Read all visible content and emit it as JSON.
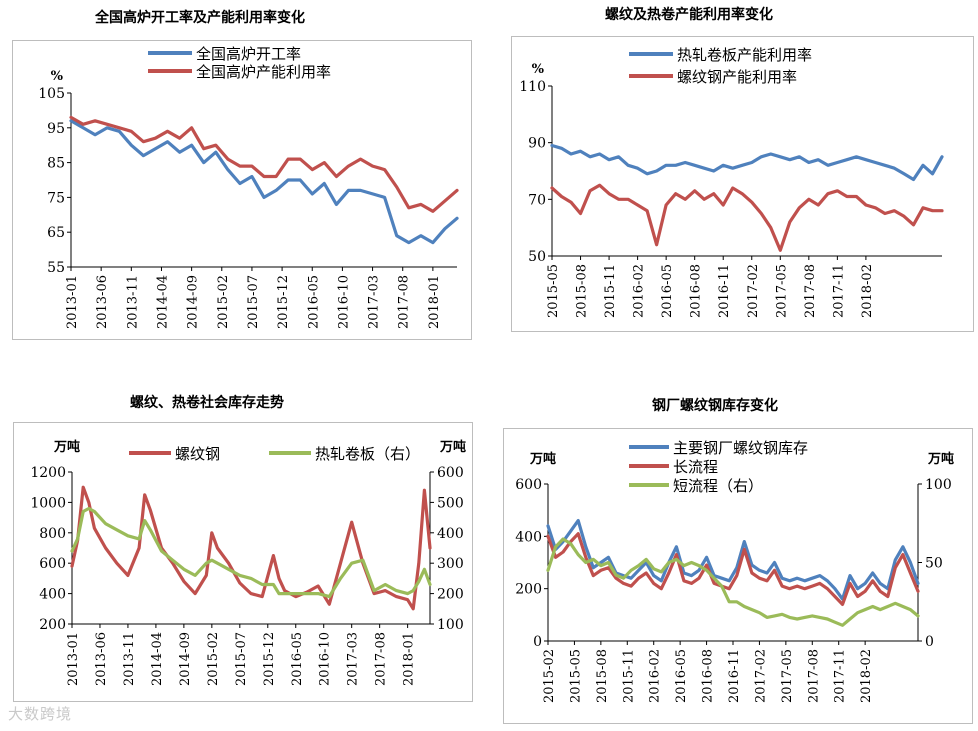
{
  "watermark": "大数跨境",
  "chart_data": [
    {
      "type": "line",
      "title": "全国高炉开工率及产能利用率变化",
      "ylabel": "%",
      "ylim": [
        55,
        105
      ],
      "yticks": [
        55,
        65,
        75,
        85,
        95,
        105
      ],
      "xticks": [
        "2013-01",
        "2013-06",
        "2013-11",
        "2014-04",
        "2014-09",
        "2015-02",
        "2015-07",
        "2015-12",
        "2016-05",
        "2016-10",
        "2017-03",
        "2017-08",
        "2018-01"
      ],
      "colors": {
        "s0": "#4f81bd",
        "s1": "#c0504d"
      },
      "series": [
        {
          "name": "全国高炉开工率",
          "axis": "left",
          "x": [
            0,
            2,
            4,
            6,
            8,
            10,
            12,
            14,
            16,
            18,
            20,
            22,
            24,
            26,
            28,
            30,
            32,
            34,
            36,
            38,
            40,
            42,
            44,
            46,
            48,
            50,
            52,
            54,
            56,
            58,
            60,
            62,
            64
          ],
          "values": [
            97,
            95,
            93,
            95,
            94,
            90,
            87,
            89,
            91,
            88,
            90,
            85,
            88,
            83,
            79,
            81,
            75,
            77,
            80,
            80,
            76,
            79,
            73,
            77,
            77,
            76,
            75,
            64,
            62,
            64,
            62,
            66,
            69
          ]
        },
        {
          "name": "全国高炉产能利用率",
          "axis": "left",
          "x": [
            0,
            2,
            4,
            6,
            8,
            10,
            12,
            14,
            16,
            18,
            20,
            22,
            24,
            26,
            28,
            30,
            32,
            34,
            36,
            38,
            40,
            42,
            44,
            46,
            48,
            50,
            52,
            54,
            56,
            58,
            60,
            62,
            64
          ],
          "values": [
            98,
            96,
            97,
            96,
            95,
            94,
            91,
            92,
            94,
            92,
            95,
            89,
            90,
            86,
            84,
            84,
            81,
            81,
            86,
            86,
            83,
            85,
            81,
            84,
            86,
            84,
            83,
            78,
            72,
            73,
            71,
            74,
            77
          ]
        }
      ]
    },
    {
      "type": "line",
      "title": "螺纹及热卷产能利用率变化",
      "ylabel": "%",
      "ylim": [
        50,
        110
      ],
      "yticks": [
        50,
        70,
        90,
        110
      ],
      "xticks": [
        "2015-05",
        "2015-08",
        "2015-11",
        "2016-02",
        "2016-05",
        "2016-08",
        "2016-11",
        "2017-02",
        "2017-05",
        "2017-08",
        "2017-11",
        "2018-02"
      ],
      "colors": {
        "s0": "#4f81bd",
        "s1": "#c0504d"
      },
      "series": [
        {
          "name": "热轧卷板产能利用率",
          "axis": "left",
          "x": [
            0,
            1,
            2,
            3,
            4,
            5,
            6,
            7,
            8,
            9,
            10,
            11,
            12,
            13,
            14,
            15,
            16,
            17,
            18,
            19,
            20,
            21,
            22,
            23,
            24,
            25,
            26,
            27,
            28,
            29,
            30,
            31,
            32,
            33,
            34,
            35,
            36,
            37,
            38,
            39,
            40,
            41
          ],
          "values": [
            89,
            88,
            86,
            87,
            85,
            86,
            84,
            85,
            82,
            81,
            79,
            80,
            82,
            82,
            83,
            82,
            81,
            80,
            82,
            81,
            82,
            83,
            85,
            86,
            85,
            84,
            85,
            83,
            84,
            82,
            83,
            84,
            85,
            84,
            83,
            82,
            81,
            79,
            77,
            82,
            79,
            85
          ]
        },
        {
          "name": "螺纹钢产能利用率",
          "axis": "left",
          "x": [
            0,
            1,
            2,
            3,
            4,
            5,
            6,
            7,
            8,
            9,
            10,
            11,
            12,
            13,
            14,
            15,
            16,
            17,
            18,
            19,
            20,
            21,
            22,
            23,
            24,
            25,
            26,
            27,
            28,
            29,
            30,
            31,
            32,
            33,
            34,
            35,
            36,
            37,
            38,
            39,
            40,
            41
          ],
          "values": [
            74,
            71,
            69,
            65,
            73,
            75,
            72,
            70,
            70,
            68,
            66,
            54,
            68,
            72,
            70,
            73,
            70,
            72,
            68,
            74,
            72,
            69,
            65,
            60,
            52,
            62,
            67,
            70,
            68,
            72,
            73,
            71,
            71,
            68,
            67,
            65,
            66,
            64,
            61,
            67,
            66,
            66
          ]
        }
      ]
    },
    {
      "type": "line",
      "title": "螺纹、热卷社会库存走势",
      "ylabel_left": "万吨",
      "ylabel_right": "万吨",
      "ylim": [
        200,
        1200
      ],
      "y2lim": [
        100,
        600
      ],
      "yticks": [
        200,
        400,
        600,
        800,
        1000,
        1200
      ],
      "y2ticks": [
        100,
        200,
        300,
        400,
        500,
        600
      ],
      "xticks": [
        "2013-01",
        "2013-06",
        "2013-11",
        "2014-04",
        "2014-09",
        "2015-02",
        "2015-07",
        "2015-12",
        "2016-05",
        "2016-10",
        "2017-03",
        "2017-08",
        "2018-01"
      ],
      "colors": {
        "s0": "#c0504d",
        "s1": "#9bbb59"
      },
      "series": [
        {
          "name": "螺纹钢",
          "axis": "left",
          "x": [
            0,
            1,
            2,
            3,
            4,
            6,
            8,
            10,
            12,
            13,
            14,
            16,
            18,
            20,
            22,
            24,
            25,
            26,
            28,
            30,
            32,
            34,
            36,
            37,
            38,
            40,
            42,
            44,
            46,
            48,
            50,
            52,
            54,
            56,
            58,
            60,
            61,
            62,
            63,
            64
          ],
          "values": [
            580,
            750,
            1100,
            1000,
            830,
            700,
            600,
            520,
            700,
            1050,
            950,
            700,
            600,
            480,
            400,
            520,
            800,
            700,
            600,
            470,
            400,
            380,
            650,
            500,
            420,
            380,
            410,
            450,
            330,
            600,
            870,
            600,
            400,
            420,
            380,
            360,
            300,
            600,
            1080,
            700
          ]
        },
        {
          "name": "热轧卷板（右）",
          "axis": "right",
          "x": [
            0,
            1,
            2,
            3,
            4,
            6,
            8,
            10,
            12,
            13,
            14,
            16,
            18,
            20,
            22,
            24,
            25,
            26,
            28,
            30,
            32,
            34,
            36,
            37,
            38,
            40,
            42,
            44,
            46,
            48,
            50,
            52,
            54,
            56,
            58,
            60,
            61,
            62,
            63,
            64
          ],
          "values": [
            340,
            380,
            470,
            480,
            470,
            430,
            410,
            390,
            380,
            440,
            410,
            340,
            310,
            280,
            260,
            300,
            310,
            300,
            280,
            260,
            250,
            230,
            230,
            200,
            200,
            200,
            200,
            200,
            190,
            250,
            300,
            310,
            210,
            230,
            210,
            200,
            210,
            240,
            280,
            230
          ]
        }
      ]
    },
    {
      "type": "line",
      "title": "钢厂螺纹钢库存变化",
      "ylabel_left": "万吨",
      "ylabel_right": "万吨",
      "ylim": [
        0,
        600
      ],
      "y2lim": [
        0,
        100
      ],
      "yticks": [
        0,
        200,
        400,
        600
      ],
      "y2ticks": [
        0,
        50,
        100
      ],
      "xticks": [
        "2015-02",
        "2015-05",
        "2015-08",
        "2015-11",
        "2016-02",
        "2016-05",
        "2016-08",
        "2016-11",
        "2017-02",
        "2017-05",
        "2017-08",
        "2017-11",
        "2018-02"
      ],
      "colors": {
        "s0": "#4f81bd",
        "s1": "#c0504d",
        "s2": "#9bbb59"
      },
      "series": [
        {
          "name": "主要钢厂螺纹钢库存",
          "axis": "left",
          "x": [
            0,
            1,
            2,
            3,
            4,
            5,
            6,
            7,
            8,
            9,
            10,
            11,
            12,
            13,
            14,
            15,
            16,
            17,
            18,
            19,
            20,
            21,
            22,
            23,
            24,
            25,
            26,
            27,
            28,
            29,
            30,
            31,
            32,
            33,
            34,
            35,
            36,
            37,
            38,
            39,
            40,
            41,
            42,
            43,
            44,
            45,
            46,
            47,
            48,
            49
          ],
          "values": [
            440,
            350,
            380,
            420,
            460,
            360,
            280,
            300,
            320,
            260,
            250,
            240,
            270,
            300,
            250,
            230,
            300,
            360,
            260,
            250,
            270,
            320,
            250,
            240,
            230,
            280,
            380,
            290,
            270,
            260,
            300,
            240,
            230,
            240,
            230,
            240,
            250,
            230,
            200,
            160,
            250,
            200,
            220,
            260,
            220,
            200,
            310,
            360,
            300,
            220
          ]
        },
        {
          "name": "长流程",
          "axis": "left",
          "x": [
            0,
            1,
            2,
            3,
            4,
            5,
            6,
            7,
            8,
            9,
            10,
            11,
            12,
            13,
            14,
            15,
            16,
            17,
            18,
            19,
            20,
            21,
            22,
            23,
            24,
            25,
            26,
            27,
            28,
            29,
            30,
            31,
            32,
            33,
            34,
            35,
            36,
            37,
            38,
            39,
            40,
            41,
            42,
            43,
            44,
            45,
            46,
            47,
            48,
            49
          ],
          "values": [
            400,
            320,
            340,
            380,
            410,
            320,
            250,
            270,
            280,
            240,
            220,
            210,
            240,
            260,
            220,
            200,
            260,
            330,
            230,
            220,
            240,
            290,
            220,
            210,
            200,
            250,
            350,
            260,
            240,
            230,
            270,
            210,
            200,
            210,
            200,
            210,
            220,
            200,
            170,
            140,
            220,
            170,
            190,
            230,
            190,
            170,
            280,
            330,
            260,
            190
          ]
        },
        {
          "name": "短流程（右）",
          "axis": "right",
          "x": [
            0,
            1,
            2,
            3,
            4,
            5,
            6,
            7,
            8,
            9,
            10,
            11,
            12,
            13,
            14,
            15,
            16,
            17,
            18,
            19,
            20,
            21,
            22,
            23,
            24,
            25,
            26,
            27,
            28,
            29,
            30,
            31,
            32,
            33,
            34,
            35,
            36,
            37,
            38,
            39,
            40,
            41,
            42,
            43,
            44,
            45,
            46,
            47,
            48,
            49
          ],
          "values": [
            45,
            60,
            65,
            62,
            55,
            50,
            52,
            48,
            50,
            42,
            40,
            45,
            48,
            52,
            46,
            44,
            50,
            52,
            48,
            50,
            48,
            45,
            40,
            35,
            25,
            25,
            22,
            20,
            18,
            15,
            16,
            17,
            15,
            14,
            15,
            16,
            15,
            14,
            12,
            10,
            14,
            18,
            20,
            22,
            20,
            22,
            24,
            22,
            20,
            16
          ]
        }
      ]
    }
  ]
}
